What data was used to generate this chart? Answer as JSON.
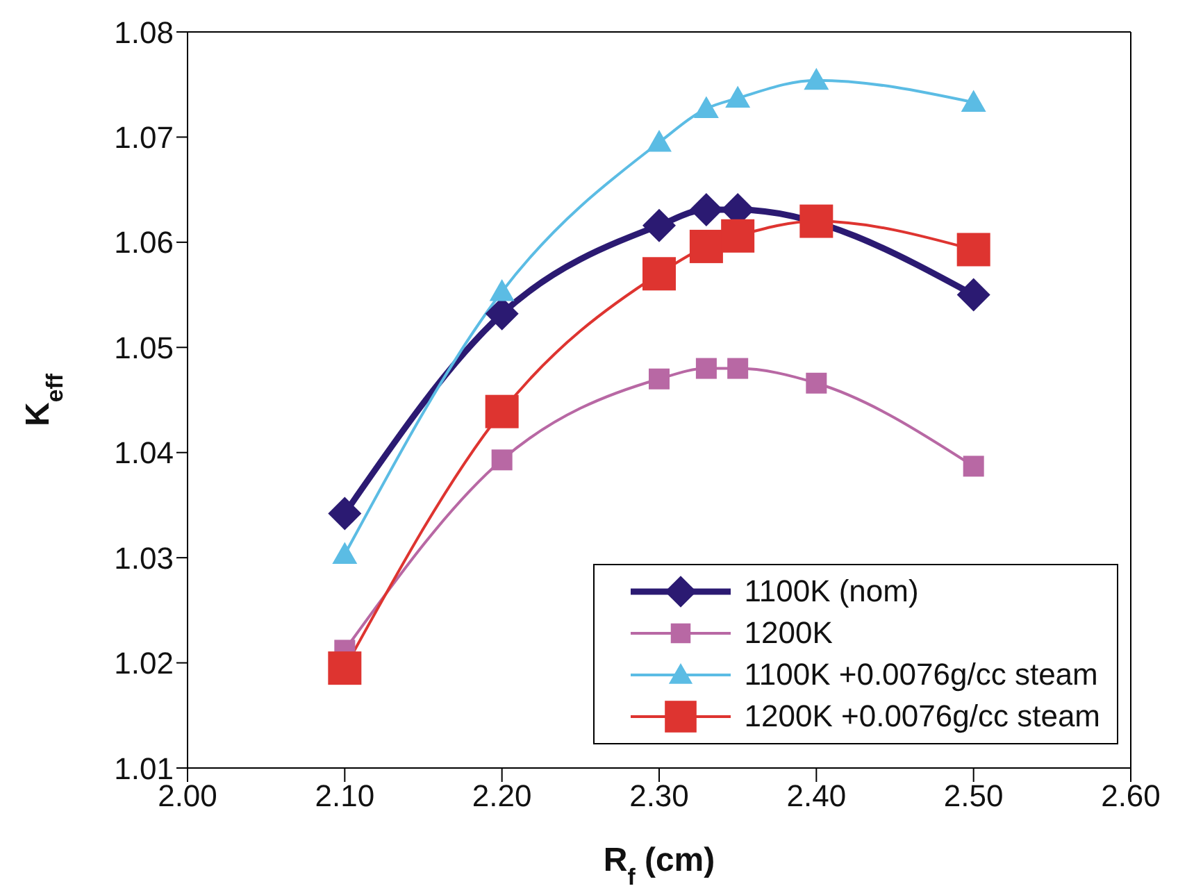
{
  "chart_data": {
    "type": "line",
    "xlabel": "R$_{f}$ (cm)",
    "ylabel": "K$_{eff}$",
    "x": [
      2.1,
      2.2,
      2.3,
      2.33,
      2.35,
      2.4,
      2.5
    ],
    "xlim": [
      2.0,
      2.6
    ],
    "xticks": [
      {
        "value": 2.0,
        "label": "2.00"
      },
      {
        "value": 2.1,
        "label": "2.10"
      },
      {
        "value": 2.2,
        "label": "2.20"
      },
      {
        "value": 2.3,
        "label": "2.30"
      },
      {
        "value": 2.4,
        "label": "2.40"
      },
      {
        "value": 2.5,
        "label": "2.50"
      },
      {
        "value": 2.6,
        "label": "2.60"
      }
    ],
    "ylim": [
      1.01,
      1.08
    ],
    "yticks": [
      1.01,
      1.02,
      1.03,
      1.04,
      1.05,
      1.06,
      1.07,
      1.08
    ],
    "grid": false,
    "legend": "bottom right",
    "line_style": "solid",
    "series": [
      {
        "name": "1100K (nom)",
        "color": "#2b1a72",
        "marker": "diamond",
        "values": [
          1.0342,
          1.0532,
          1.0616,
          1.0631,
          1.0631,
          null,
          1.055
        ]
      },
      {
        "name": "1200K",
        "color": "#b868a4",
        "marker": "square",
        "values": [
          1.0212,
          1.0393,
          1.047,
          1.048,
          1.048,
          1.0466,
          1.0387
        ]
      },
      {
        "name": "1100K +0.0076g/cc steam",
        "color": "#5bbce4",
        "marker": "triangle",
        "values": [
          1.0303,
          1.0553,
          1.0695,
          1.0727,
          1.0737,
          1.0754,
          1.0733
        ]
      },
      {
        "name": "1200K +0.0076g/cc steam",
        "color": "#de3430",
        "marker": "square",
        "values": [
          1.0195,
          1.0439,
          1.057,
          1.0596,
          1.0606,
          1.062,
          1.0593
        ]
      }
    ]
  }
}
